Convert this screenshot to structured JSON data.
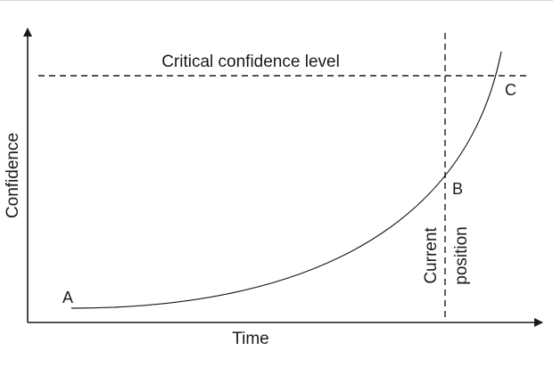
{
  "diagram": {
    "threshold_label": "Critical confidence level",
    "x_axis_label": "Time",
    "y_axis_label": "Confidence",
    "point_labels": [
      "A",
      "B",
      "C"
    ],
    "marker_label_line1": "Current",
    "marker_label_line2": "position",
    "colors": {
      "ink": "#1a1a1a",
      "background": "#ffffff"
    }
  }
}
